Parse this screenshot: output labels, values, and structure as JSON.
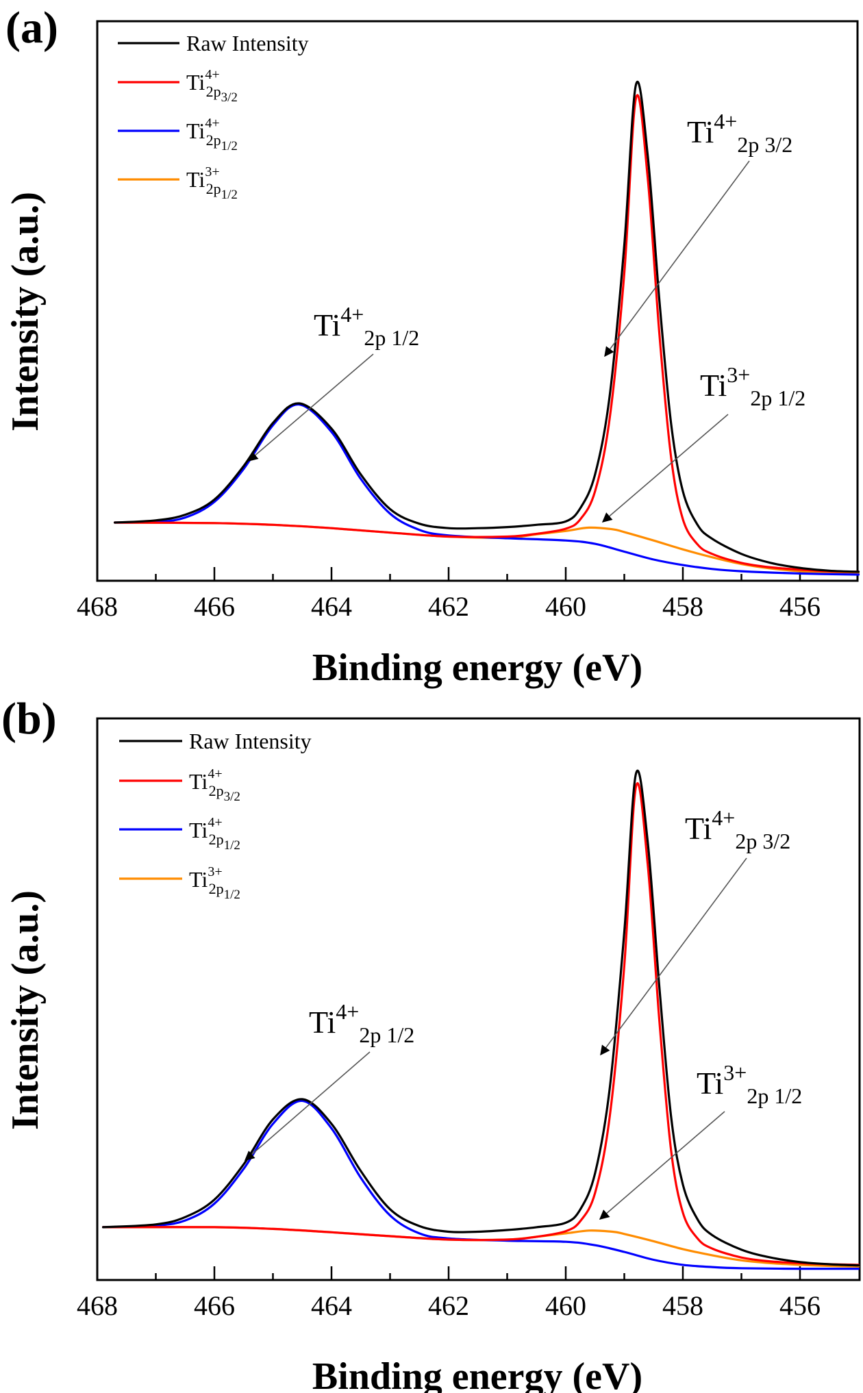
{
  "chart_data": [
    {
      "panel_label": "(a)",
      "type": "line",
      "title": "",
      "xlabel": "Binding energy (eV)",
      "ylabel": "Intensity (a.u.)",
      "xlim": [
        468,
        455
      ],
      "x_reversed": true,
      "ylim": [
        0,
        100
      ],
      "x_ticks": [
        468,
        466,
        464,
        462,
        460,
        458,
        456
      ],
      "x_minor_ticks": [
        467,
        465,
        463,
        461,
        459,
        457
      ],
      "y_ticks_shown": false,
      "grid": false,
      "legend_position": "top-left",
      "series": [
        {
          "name": "Raw Intensity",
          "legend": {
            "base": "Raw Intensity",
            "sup": "",
            "sub": "",
            "subsub": ""
          },
          "color": "#000000",
          "x": [
            467.7,
            467.0,
            466.5,
            466.0,
            465.5,
            465.0,
            464.55,
            464.0,
            463.5,
            463.0,
            462.5,
            462.0,
            461.5,
            461.0,
            460.5,
            460.0,
            459.75,
            459.5,
            459.25,
            459.0,
            458.8,
            458.6,
            458.4,
            458.2,
            458.0,
            457.75,
            457.5,
            457.0,
            456.5,
            456.0,
            455.5,
            455.0
          ],
          "y": [
            10.4,
            10.8,
            11.8,
            14.5,
            20.5,
            28.2,
            31.7,
            27.2,
            19.0,
            12.8,
            10.2,
            9.4,
            9.4,
            9.6,
            10.0,
            10.6,
            13.0,
            19.0,
            33.0,
            60.0,
            88.7,
            76.0,
            50.0,
            28.0,
            16.0,
            10.0,
            7.5,
            4.8,
            3.2,
            2.3,
            1.8,
            1.6
          ]
        },
        {
          "name": "Ti4+ 2p3/2",
          "legend": {
            "base": "Ti",
            "sup": "4+",
            "sub": "2p",
            "subsub": "3/2"
          },
          "color": "#ff0000",
          "x": [
            467.7,
            466.0,
            465.0,
            464.0,
            463.0,
            462.0,
            461.0,
            460.5,
            460.0,
            459.75,
            459.5,
            459.25,
            459.0,
            458.8,
            458.6,
            458.4,
            458.2,
            458.0,
            457.75,
            457.5,
            457.0,
            456.5,
            456.0,
            455.5,
            455.0
          ],
          "y": [
            10.4,
            10.3,
            10.0,
            9.4,
            8.6,
            7.9,
            7.9,
            8.4,
            9.3,
            11.0,
            16.0,
            29.0,
            55.0,
            86.3,
            72.0,
            44.0,
            22.0,
            11.0,
            6.5,
            4.8,
            3.2,
            2.4,
            2.0,
            1.7,
            1.6
          ]
        },
        {
          "name": "Ti4+ 2p1/2",
          "legend": {
            "base": "Ti",
            "sup": "4+",
            "sub": "2p",
            "subsub": "1/2"
          },
          "color": "#0000ff",
          "x": [
            467.7,
            467.0,
            466.5,
            466.0,
            465.5,
            465.0,
            464.55,
            464.0,
            463.5,
            463.0,
            462.5,
            462.0,
            461.0,
            460.0,
            459.5,
            459.0,
            458.5,
            458.0,
            457.5,
            457.0,
            456.0,
            455.0
          ],
          "y": [
            10.4,
            10.5,
            11.3,
            14.1,
            20.0,
            27.8,
            31.5,
            26.6,
            18.2,
            12.0,
            9.1,
            8.1,
            7.6,
            7.2,
            6.6,
            5.2,
            3.8,
            2.8,
            2.1,
            1.7,
            1.3,
            1.1
          ]
        },
        {
          "name": "Ti3+ 2p1/2",
          "legend": {
            "base": "Ti",
            "sup": "3+",
            "sub": "2p",
            "subsub": "1/2"
          },
          "color": "#ff8c00",
          "x": [
            467.7,
            466.0,
            465.0,
            464.0,
            463.0,
            462.0,
            461.0,
            460.5,
            460.0,
            459.6,
            459.2,
            459.0,
            458.5,
            458.0,
            457.5,
            457.0,
            456.5,
            456.0,
            455.5,
            455.0
          ],
          "y": [
            10.4,
            10.3,
            10.0,
            9.4,
            8.6,
            7.9,
            7.7,
            8.3,
            8.9,
            9.5,
            9.2,
            8.7,
            7.2,
            5.6,
            4.2,
            3.0,
            2.2,
            1.7,
            1.4,
            1.3
          ]
        }
      ],
      "annotations": [
        {
          "base": "Ti",
          "sup": "4+",
          "sub": "2p 3/2",
          "points_to_eV": 459.4
        },
        {
          "base": "Ti",
          "sup": "4+",
          "sub": "2p 1/2",
          "points_to_eV": 465.4
        },
        {
          "base": "Ti",
          "sup": "3+",
          "sub": "2p 1/2",
          "points_to_eV": 459.5
        }
      ]
    },
    {
      "panel_label": "(b)",
      "type": "line",
      "title": "",
      "xlabel": "Binding energy (eV)",
      "ylabel": "Intensity (a.u.)",
      "xlim": [
        468,
        455
      ],
      "x_reversed": true,
      "ylim": [
        0,
        100
      ],
      "x_ticks": [
        468,
        466,
        464,
        462,
        460,
        458,
        456
      ],
      "x_minor_ticks": [
        467,
        465,
        463,
        461,
        459,
        457
      ],
      "y_ticks_shown": false,
      "grid": false,
      "legend_position": "top-left",
      "series": [
        {
          "name": "Raw Intensity",
          "legend": {
            "base": "Raw Intensity",
            "sup": "",
            "sub": "",
            "subsub": ""
          },
          "color": "#000000",
          "x": [
            467.9,
            467.0,
            466.5,
            466.0,
            465.5,
            465.0,
            464.5,
            464.0,
            463.5,
            463.0,
            462.5,
            462.0,
            461.5,
            461.0,
            460.5,
            460.0,
            459.75,
            459.5,
            459.25,
            459.0,
            458.8,
            458.6,
            458.4,
            458.2,
            458.0,
            457.75,
            457.5,
            457.0,
            456.5,
            456.0,
            455.5,
            455.0
          ],
          "y": [
            9.4,
            9.9,
            11.2,
            14.3,
            20.6,
            28.6,
            32.2,
            27.8,
            19.4,
            12.6,
            9.6,
            8.6,
            8.6,
            8.9,
            9.4,
            10.2,
            12.6,
            19.0,
            34.0,
            62.0,
            90.2,
            78.0,
            52.0,
            29.0,
            17.0,
            10.8,
            8.0,
            5.4,
            4.0,
            3.2,
            2.8,
            2.6
          ]
        },
        {
          "name": "Ti4+ 2p3/2",
          "legend": {
            "base": "Ti",
            "sup": "4+",
            "sub": "2p",
            "subsub": "3/2"
          },
          "color": "#ff0000",
          "x": [
            467.9,
            466.0,
            465.0,
            464.0,
            463.0,
            462.0,
            461.0,
            460.5,
            460.0,
            459.75,
            459.5,
            459.25,
            459.0,
            458.8,
            458.6,
            458.4,
            458.2,
            458.0,
            457.75,
            457.5,
            457.0,
            456.5,
            456.0,
            455.5,
            455.0
          ],
          "y": [
            9.4,
            9.4,
            9.1,
            8.5,
            7.8,
            7.2,
            7.2,
            7.7,
            8.7,
            10.5,
            15.5,
            29.0,
            56.0,
            87.9,
            74.0,
            46.0,
            23.0,
            12.0,
            7.4,
            5.6,
            4.0,
            3.3,
            3.0,
            2.8,
            2.7
          ]
        },
        {
          "name": "Ti4+ 2p1/2",
          "legend": {
            "base": "Ti",
            "sup": "4+",
            "sub": "2p",
            "subsub": "1/2"
          },
          "color": "#0000ff",
          "x": [
            467.9,
            467.0,
            466.5,
            466.0,
            465.5,
            465.0,
            464.5,
            464.0,
            463.5,
            463.0,
            462.5,
            462.0,
            461.0,
            460.0,
            459.5,
            459.0,
            458.5,
            458.0,
            457.5,
            457.0,
            456.0,
            455.0
          ],
          "y": [
            9.4,
            9.7,
            10.6,
            13.6,
            19.8,
            27.8,
            31.9,
            27.0,
            18.2,
            11.5,
            8.3,
            7.4,
            7.0,
            6.8,
            6.2,
            5.0,
            3.6,
            2.7,
            2.3,
            2.1,
            2.0,
            2.0
          ]
        },
        {
          "name": "Ti3+ 2p1/2",
          "legend": {
            "base": "Ti",
            "sup": "3+",
            "sub": "2p",
            "subsub": "1/2"
          },
          "color": "#ff8c00",
          "x": [
            467.9,
            466.0,
            465.0,
            464.0,
            463.0,
            462.0,
            461.0,
            460.5,
            460.0,
            459.6,
            459.2,
            459.0,
            458.5,
            458.0,
            457.5,
            457.0,
            456.5,
            456.0,
            455.5,
            455.0
          ],
          "y": [
            9.4,
            9.4,
            9.1,
            8.5,
            7.8,
            7.2,
            7.2,
            7.7,
            8.3,
            8.8,
            8.6,
            8.2,
            6.9,
            5.5,
            4.4,
            3.5,
            3.0,
            2.7,
            2.5,
            2.4
          ]
        }
      ],
      "annotations": [
        {
          "base": "Ti",
          "sup": "4+",
          "sub": "2p 3/2",
          "points_to_eV": 459.4
        },
        {
          "base": "Ti",
          "sup": "4+",
          "sub": "2p 1/2",
          "points_to_eV": 465.4
        },
        {
          "base": "Ti",
          "sup": "3+",
          "sub": "2p 1/2",
          "points_to_eV": 459.5
        }
      ]
    }
  ]
}
